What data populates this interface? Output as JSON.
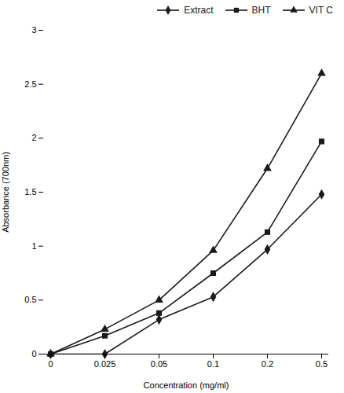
{
  "chart_data": {
    "type": "line",
    "xlabel": "Concentration (mg/ml)",
    "ylabel": "Absorbance (700nm)",
    "categories": [
      "0",
      "0.025",
      "0.05",
      "0.1",
      "0.2",
      "0.5"
    ],
    "series": [
      {
        "name": "Extract",
        "color": "#1a1a1a",
        "marker": "diamond",
        "values": [
          0,
          0.0,
          0.32,
          0.53,
          0.97,
          1.48
        ]
      },
      {
        "name": "BHT",
        "color": "#1a1a1a",
        "marker": "square",
        "values": [
          0,
          0.17,
          0.38,
          0.75,
          1.13,
          1.97
        ]
      },
      {
        "name": "VIT C",
        "color": "#1a1a1a",
        "marker": "triangle",
        "values": [
          0,
          0.23,
          0.5,
          0.96,
          1.72,
          2.6
        ]
      }
    ],
    "ylim": [
      0,
      3.0
    ],
    "yticks": [
      0,
      0.5,
      1,
      1.5,
      2,
      2.5,
      3
    ],
    "legend": "upper right"
  }
}
